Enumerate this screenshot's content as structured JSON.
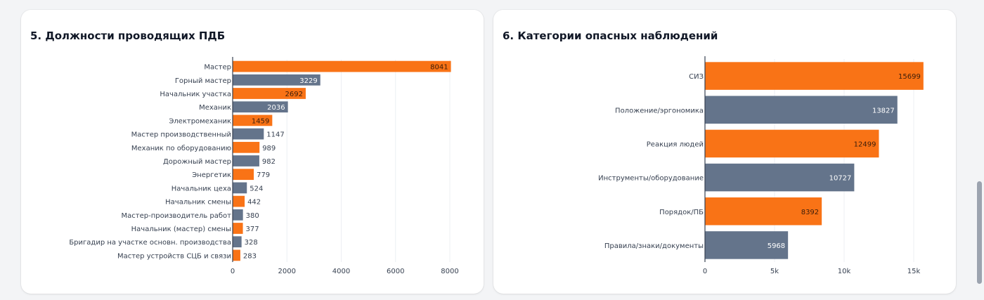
{
  "colors": {
    "orange": "#f97316",
    "slate": "#64748b",
    "axis": "#374151",
    "grid": "#eceff3",
    "label": "#374151"
  },
  "panels": [
    {
      "title": "5. Должности проводящих ПДБ",
      "chart_data": {
        "type": "bar",
        "orientation": "horizontal",
        "categories": [
          "Мастер",
          "Горный мастер",
          "Начальник участка",
          "Механик",
          "Электромеханик",
          "Мастер производственный",
          "Механик по оборудованию",
          "Дорожный мастер",
          "Энергетик",
          "Начальник цеха",
          "Начальник смены",
          "Мастер-производитель работ",
          "Начальник (мастер) смены",
          "Бригадир на участке основн. производства",
          "Мастер устройств СЦБ и связи"
        ],
        "values": [
          8041,
          3229,
          2692,
          2036,
          1459,
          1147,
          989,
          982,
          779,
          524,
          442,
          380,
          377,
          328,
          283
        ],
        "bar_colors": [
          "orange",
          "slate",
          "orange",
          "slate",
          "orange",
          "slate",
          "orange",
          "slate",
          "orange",
          "slate",
          "orange",
          "slate",
          "orange",
          "slate",
          "orange"
        ],
        "value_labels": [
          "8041",
          "3229",
          "2692",
          "2036",
          "1459",
          "1147",
          "989",
          "982",
          "779",
          "524",
          "442",
          "380",
          "377",
          "328",
          "283"
        ],
        "xlim": [
          0,
          8000
        ],
        "ticks": [
          0,
          2000,
          4000,
          6000,
          8000
        ],
        "tick_labels": [
          "0",
          "2000",
          "4000",
          "6000",
          "8000"
        ],
        "grid": true,
        "legend": "none"
      }
    },
    {
      "title": "6. Категории опасных наблюдений",
      "chart_data": {
        "type": "bar",
        "orientation": "horizontal",
        "categories": [
          "СИЗ",
          "Положение/эргономика",
          "Реакция людей",
          "Инструменты/оборудование",
          "Порядок/ПБ",
          "Правила/знаки/документы"
        ],
        "values": [
          15699,
          13827,
          12499,
          10727,
          8392,
          5968
        ],
        "bar_colors": [
          "orange",
          "slate",
          "orange",
          "slate",
          "orange",
          "slate"
        ],
        "value_labels": [
          "15699",
          "13827",
          "12499",
          "10727",
          "8392",
          "5968"
        ],
        "xlim": [
          0,
          15000
        ],
        "ticks": [
          0,
          5000,
          10000,
          15000
        ],
        "tick_labels": [
          "0",
          "5k",
          "10k",
          "15k"
        ],
        "grid": true,
        "legend": "none"
      }
    }
  ]
}
